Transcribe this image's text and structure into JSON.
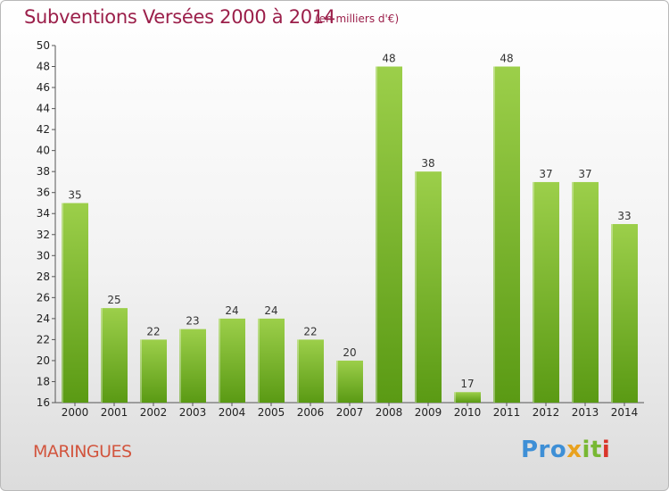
{
  "title": "Subventions Versées 2000 à 2014",
  "subtitle": "(en milliers d'€)",
  "commune": "MARINGUES",
  "logo": {
    "p1": "Pro",
    "p2": "x",
    "p3": "it",
    "p4": "i"
  },
  "colors": {
    "bar_top": "#9ccf4a",
    "bar_bottom": "#5a9a14",
    "title": "#9b1f4a",
    "commune": "#d2553e"
  },
  "chart_data": {
    "type": "bar",
    "title": "Subventions Versées 2000 à 2014",
    "subtitle": "(en milliers d'€)",
    "categories": [
      "2000",
      "2001",
      "2002",
      "2003",
      "2004",
      "2005",
      "2006",
      "2007",
      "2008",
      "2009",
      "2010",
      "2011",
      "2012",
      "2013",
      "2014"
    ],
    "values": [
      35,
      25,
      22,
      23,
      24,
      24,
      22,
      20,
      48,
      38,
      17,
      48,
      37,
      37,
      33
    ],
    "ylim": [
      16,
      50
    ],
    "yticks": [
      16,
      18,
      20,
      22,
      24,
      26,
      28,
      30,
      32,
      34,
      36,
      38,
      40,
      42,
      44,
      46,
      48,
      50
    ],
    "grid": false,
    "legend": "none"
  }
}
